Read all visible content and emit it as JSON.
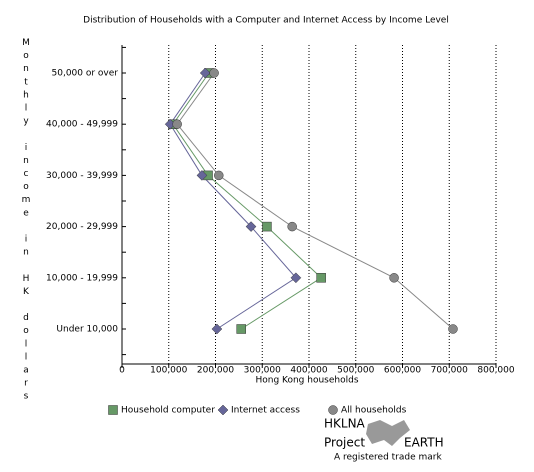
{
  "chart_data": {
    "type": "line",
    "title": "Distribution of Households with a Computer and Internet Access by Income Level",
    "x_label": "Hong Kong households",
    "y_label": "Monthly income in HK dollars",
    "categories": [
      "50,000 or over",
      "40,000 - 49,999",
      "30,000 - 39,999",
      "20,000 - 29,999",
      "10,000 - 19,999",
      "Under 10,000"
    ],
    "series": [
      {
        "name": "Household computer",
        "color": "#669966",
        "marker": "square",
        "values": [
          186000,
          109000,
          184000,
          310000,
          426000,
          255000
        ]
      },
      {
        "name": "Internet access",
        "color": "#666699",
        "marker": "diamond",
        "values": [
          178000,
          103000,
          171000,
          276000,
          372000,
          203000
        ]
      },
      {
        "name": "All households",
        "color": "#888888",
        "marker": "circle",
        "values": [
          197000,
          118000,
          207000,
          364000,
          582000,
          708000
        ]
      }
    ],
    "xlim": [
      0,
      800000
    ],
    "xticks": [
      0,
      {
        "value": 100000,
        "label": "100,000"
      },
      {
        "value": 200000,
        "label": "200,000"
      },
      {
        "value": 300000,
        "label": "300,000"
      },
      {
        "value": 400000,
        "label": "400,000"
      },
      {
        "value": 500000,
        "label": "500,000"
      },
      {
        "value": 600000,
        "label": "600,000"
      },
      {
        "value": 700000,
        "label": "700,000"
      },
      {
        "value": 800000,
        "label": "800,000"
      }
    ],
    "grid": true
  },
  "logo": {
    "line1": "HKLNA",
    "line2": "Project",
    "line3": "EARTH",
    "note": "A registered trade mark"
  }
}
